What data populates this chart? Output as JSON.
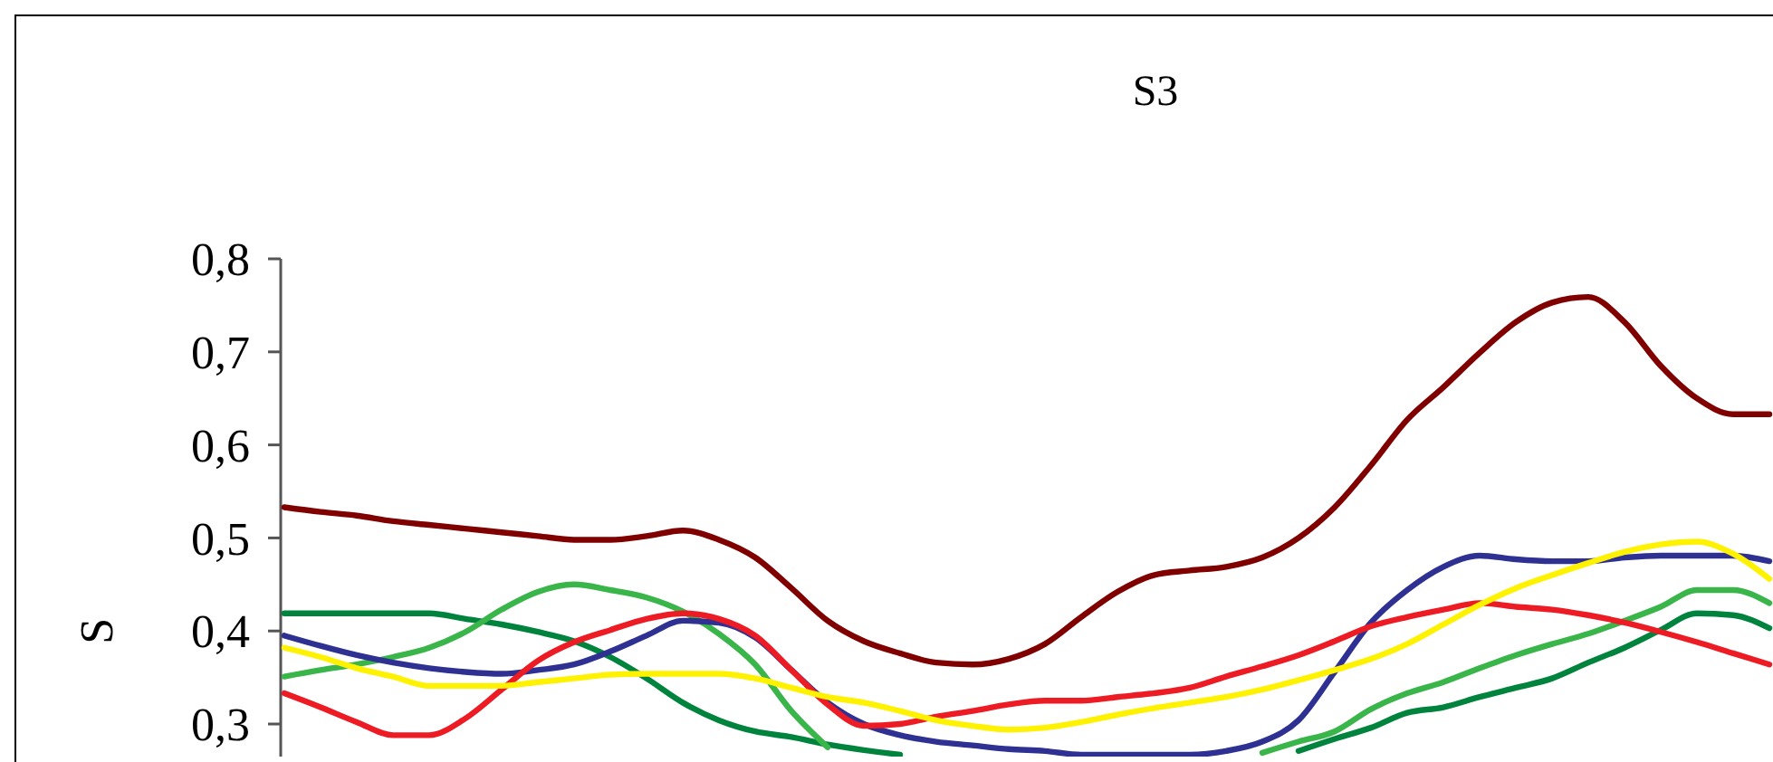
{
  "chart_data": {
    "type": "line",
    "title": "S3",
    "ylabel": "S",
    "categories": [
      null,
      null,
      null,
      null,
      null,
      null,
      null,
      null,
      null,
      null,
      null,
      null,
      null,
      null,
      null,
      null,
      null,
      null,
      null,
      null,
      null,
      null,
      null,
      null,
      null,
      null,
      null,
      null,
      null,
      null,
      null,
      null,
      null,
      null,
      null,
      null,
      null,
      null,
      null,
      null,
      null,
      null
    ],
    "ylim": [
      0.265,
      0.8
    ],
    "yticks": [
      {
        "value": 0.3,
        "label": "0,3"
      },
      {
        "value": 0.4,
        "label": "0,4"
      },
      {
        "value": 0.5,
        "label": "0,5"
      },
      {
        "value": 0.6,
        "label": "0,6"
      },
      {
        "value": 0.7,
        "label": "0,7"
      },
      {
        "value": 0.8,
        "label": "0,8"
      }
    ],
    "grid": false,
    "marker": "none",
    "line_style": "solid",
    "series": [
      {
        "color": "#800000",
        "values": [
          0.533,
          0.528,
          0.524,
          0.518,
          0.514,
          0.51,
          0.506,
          0.502,
          0.498,
          0.498,
          0.502,
          0.508,
          0.498,
          0.479,
          0.446,
          0.411,
          0.389,
          0.376,
          0.366,
          0.364,
          0.37,
          0.386,
          0.415,
          0.442,
          0.46,
          0.465,
          0.469,
          0.479,
          0.5,
          0.533,
          0.578,
          0.627,
          0.662,
          0.699,
          0.732,
          0.753,
          0.759,
          0.732,
          0.685,
          0.65,
          0.633,
          0.633
        ]
      },
      {
        "color": "#00843d",
        "values": [
          0.419,
          0.419,
          0.419,
          0.419,
          0.419,
          0.413,
          0.407,
          0.399,
          0.389,
          0.372,
          0.349,
          0.323,
          0.304,
          0.292,
          0.286,
          0.278,
          0.272,
          0.267,
          null,
          null,
          null,
          null,
          null,
          null,
          null,
          null,
          null,
          null,
          0.271,
          0.284,
          0.296,
          0.312,
          0.318,
          0.329,
          0.339,
          0.349,
          0.366,
          0.382,
          0.401,
          0.419,
          0.417,
          0.403
        ]
      },
      {
        "color": "#39b54a",
        "values": [
          0.351,
          0.358,
          0.364,
          0.372,
          0.382,
          0.399,
          0.423,
          0.442,
          0.45,
          0.444,
          0.436,
          0.421,
          0.397,
          0.364,
          0.314,
          0.275,
          null,
          null,
          null,
          null,
          null,
          null,
          null,
          null,
          null,
          null,
          null,
          0.269,
          0.281,
          0.292,
          0.316,
          0.333,
          0.345,
          0.36,
          0.374,
          0.386,
          0.397,
          0.411,
          0.426,
          0.444,
          0.444,
          0.43
        ]
      },
      {
        "color": "#2e3192",
        "values": [
          0.395,
          0.384,
          0.374,
          0.366,
          0.36,
          0.356,
          0.354,
          0.358,
          0.364,
          0.378,
          0.395,
          0.411,
          0.409,
          0.393,
          0.358,
          0.323,
          0.3,
          0.288,
          0.281,
          0.277,
          0.273,
          0.271,
          0.267,
          0.267,
          0.267,
          0.267,
          0.271,
          0.281,
          0.304,
          0.356,
          0.409,
          0.444,
          0.469,
          0.481,
          0.477,
          0.475,
          0.475,
          0.479,
          0.481,
          0.481,
          0.481,
          0.475
        ]
      },
      {
        "color": "#ed1c24",
        "values": [
          0.333,
          0.318,
          0.302,
          0.288,
          0.288,
          0.306,
          0.337,
          0.368,
          0.388,
          0.401,
          0.413,
          0.419,
          0.413,
          0.395,
          0.358,
          0.321,
          0.298,
          0.3,
          0.308,
          0.314,
          0.321,
          0.325,
          0.325,
          0.329,
          0.333,
          0.339,
          0.351,
          0.362,
          0.374,
          0.389,
          0.405,
          0.415,
          0.423,
          0.43,
          0.426,
          0.423,
          0.417,
          0.409,
          0.399,
          0.388,
          0.376,
          0.364
        ]
      },
      {
        "color": "#fff200",
        "values": [
          0.382,
          0.372,
          0.36,
          0.351,
          0.341,
          0.341,
          0.341,
          0.345,
          0.349,
          0.353,
          0.354,
          0.354,
          0.354,
          0.349,
          0.339,
          0.329,
          0.323,
          0.314,
          0.304,
          0.298,
          0.294,
          0.296,
          0.302,
          0.31,
          0.317,
          0.323,
          0.329,
          0.337,
          0.347,
          0.358,
          0.37,
          0.386,
          0.407,
          0.428,
          0.446,
          0.46,
          0.473,
          0.485,
          0.493,
          0.496,
          0.483,
          0.456
        ]
      }
    ]
  }
}
